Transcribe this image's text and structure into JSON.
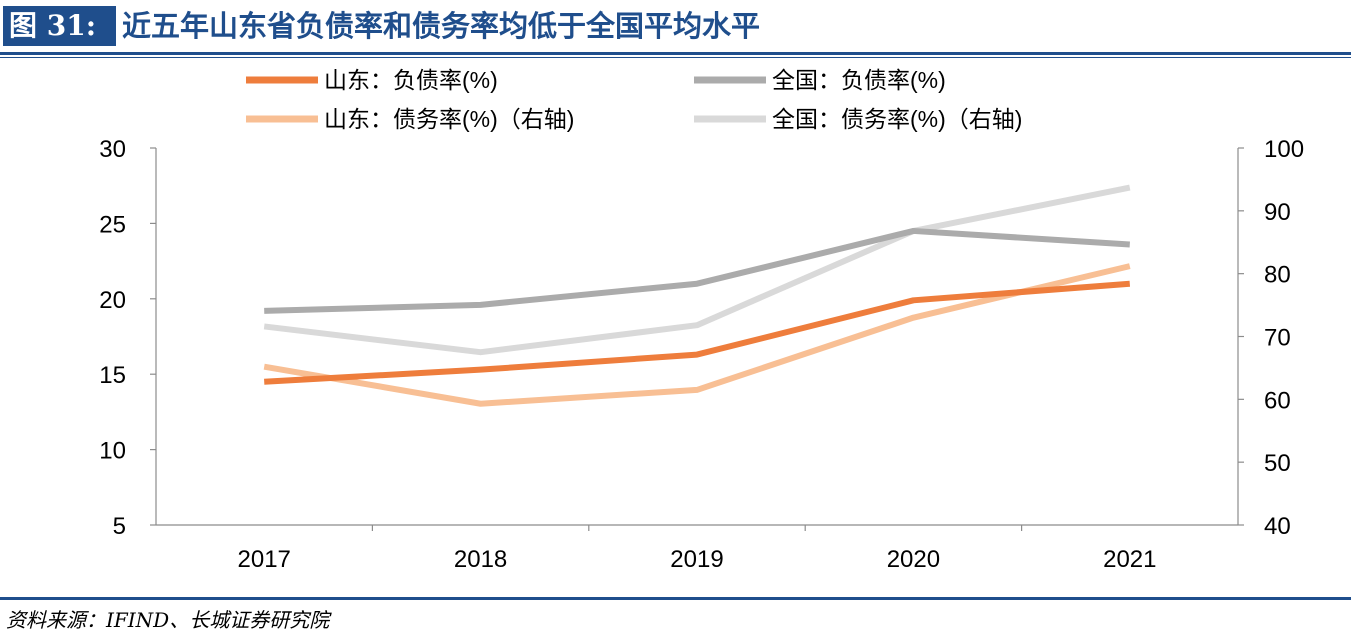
{
  "figure": {
    "label": "图 31:",
    "title": "近五年山东省负债率和债务率均低于全国平均水平"
  },
  "source": "资料来源：IFIND、长城证券研究院",
  "colors": {
    "accent": "#1f4e8c",
    "sd_debt_ratio": "#ee7d3c",
    "cn_debt_ratio": "#ababab",
    "sd_liability_ratio": "#f8bf94",
    "cn_liability_ratio": "#d9d9d9"
  },
  "chart_data": {
    "type": "line",
    "title": "近五年山东省负债率和债务率均低于全国平均水平",
    "categories": [
      "2017",
      "2018",
      "2019",
      "2020",
      "2021"
    ],
    "left_axis": {
      "ylim": [
        5,
        30
      ],
      "ticks": [
        "30",
        "25",
        "20",
        "15",
        "10",
        "5"
      ]
    },
    "right_axis": {
      "ylim": [
        40,
        100
      ],
      "ticks": [
        "100",
        "90",
        "80",
        "70",
        "60",
        "50",
        "40"
      ]
    },
    "grid": false,
    "legend_position": "top",
    "series": [
      {
        "name": "山东：负债率(%)",
        "axis": "left",
        "color": "#ee7d3c",
        "values": [
          14.5,
          15.3,
          16.3,
          19.9,
          21.0
        ]
      },
      {
        "name": "全国：负债率(%)",
        "axis": "left",
        "color": "#ababab",
        "values": [
          19.2,
          19.6,
          21.0,
          24.5,
          23.6
        ]
      },
      {
        "name": "山东：债务率(%)（右轴)",
        "axis": "right",
        "color": "#f8bf94",
        "values": [
          65.2,
          59.3,
          61.5,
          73.0,
          81.2
        ]
      },
      {
        "name": "全国：债务率(%)（右轴)",
        "axis": "right",
        "color": "#d9d9d9",
        "values": [
          71.6,
          67.5,
          71.8,
          86.8,
          93.7
        ]
      }
    ]
  }
}
